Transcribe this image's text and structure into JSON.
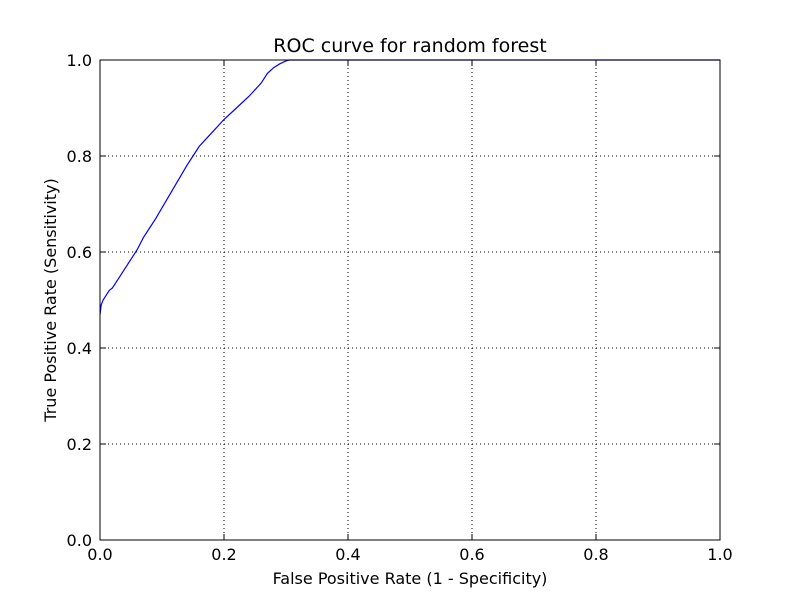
{
  "chart_data": {
    "type": "line",
    "title": "ROC curve for random forest",
    "xlabel": "False Positive Rate (1 - Specificity)",
    "ylabel": "True Positive Rate (Sensitivity)",
    "xlim": [
      0.0,
      1.0
    ],
    "ylim": [
      0.0,
      1.0
    ],
    "xticks": [
      "0.0",
      "0.2",
      "0.4",
      "0.6",
      "0.8",
      "1.0"
    ],
    "yticks": [
      "0.0",
      "0.2",
      "0.4",
      "0.6",
      "0.8",
      "1.0"
    ],
    "grid": true,
    "series": [
      {
        "color": "#0000ff",
        "x": [
          0.0,
          0.002,
          0.005,
          0.01,
          0.015,
          0.02,
          0.03,
          0.04,
          0.05,
          0.06,
          0.07,
          0.08,
          0.09,
          0.1,
          0.11,
          0.12,
          0.13,
          0.14,
          0.15,
          0.16,
          0.18,
          0.2,
          0.22,
          0.24,
          0.26,
          0.27,
          0.28,
          0.29,
          0.3,
          0.305,
          1.0
        ],
        "y": [
          0.47,
          0.49,
          0.5,
          0.51,
          0.52,
          0.525,
          0.545,
          0.565,
          0.585,
          0.605,
          0.63,
          0.65,
          0.67,
          0.692,
          0.714,
          0.736,
          0.758,
          0.78,
          0.8,
          0.82,
          0.848,
          0.876,
          0.9,
          0.924,
          0.952,
          0.972,
          0.984,
          0.992,
          0.998,
          1.0,
          1.0
        ]
      }
    ]
  }
}
